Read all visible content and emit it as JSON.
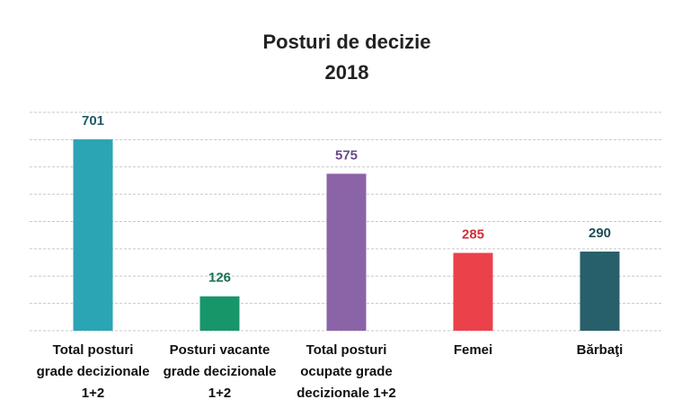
{
  "chart_data": {
    "type": "bar",
    "title": [
      "Posturi de decizie",
      "2018"
    ],
    "categories": [
      [
        "Total posturi",
        "grade decizionale",
        "1+2"
      ],
      [
        "Posturi vacante",
        "grade decizionale",
        "1+2"
      ],
      [
        "Total posturi",
        "ocupate grade",
        "decizionale  1+2"
      ],
      [
        "Femei"
      ],
      [
        "Bărbaţi"
      ]
    ],
    "values": [
      701,
      126,
      575,
      285,
      290
    ],
    "colors": [
      "#2ba4b4",
      "#17966a",
      "#8b63a7",
      "#ea414b",
      "#275f6a"
    ],
    "label_colors": [
      "#1f5a66",
      "#17704f",
      "#6a4a8a",
      "#d0303c",
      "#1f4e58"
    ],
    "ylim": [
      0,
      800
    ],
    "yticks": [
      0,
      100,
      200,
      300,
      400,
      500,
      600,
      700,
      800
    ],
    "grid": true
  }
}
